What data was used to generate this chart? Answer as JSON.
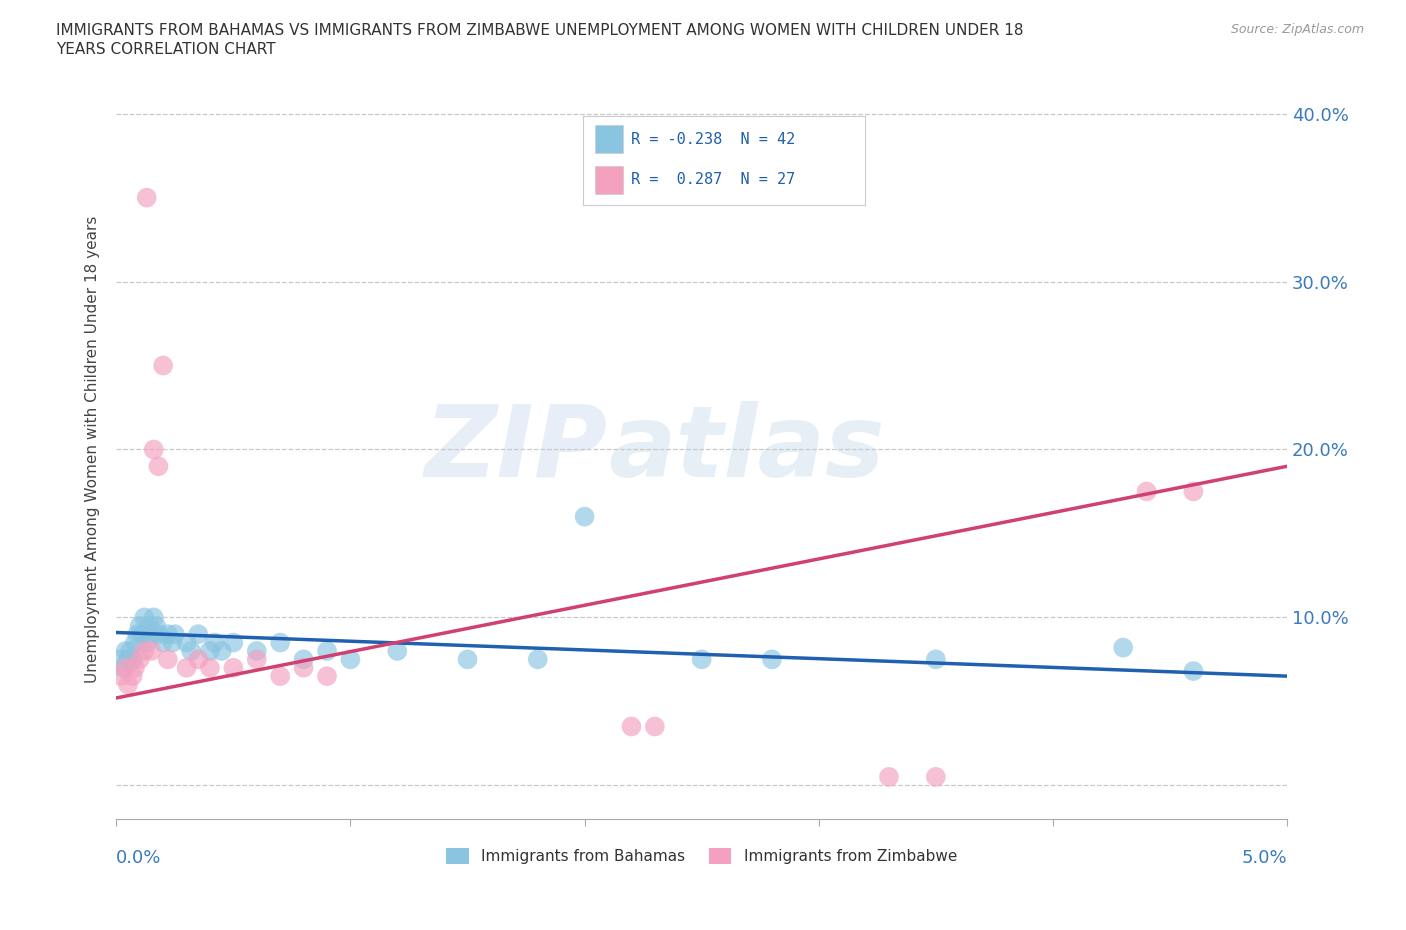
{
  "title": "IMMIGRANTS FROM BAHAMAS VS IMMIGRANTS FROM ZIMBABWE UNEMPLOYMENT AMONG WOMEN WITH CHILDREN UNDER 18\nYEARS CORRELATION CHART",
  "source": "Source: ZipAtlas.com",
  "ylabel": "Unemployment Among Women with Children Under 18 years",
  "xlim": [
    0.0,
    0.05
  ],
  "ylim": [
    -0.02,
    0.42
  ],
  "watermark_zip": "ZIP",
  "watermark_atlas": "atlas",
  "color_bahamas": "#89c4e1",
  "color_zimbabwe": "#f4a0bf",
  "color_bahamas_line": "#2060b0",
  "color_zimbabwe_line": "#d04070",
  "color_tick": "#3a7abf",
  "background_color": "#ffffff",
  "grid_color": "#c8c8c8",
  "bahamas_x": [
    0.0002,
    0.0003,
    0.0004,
    0.0005,
    0.0006,
    0.0007,
    0.0008,
    0.0009,
    0.001,
    0.0011,
    0.0012,
    0.0013,
    0.0014,
    0.0015,
    0.0016,
    0.0017,
    0.0018,
    0.002,
    0.0022,
    0.0024,
    0.0025,
    0.003,
    0.0032,
    0.0035,
    0.004,
    0.0042,
    0.0045,
    0.005,
    0.006,
    0.007,
    0.008,
    0.009,
    0.01,
    0.012,
    0.015,
    0.018,
    0.02,
    0.025,
    0.028,
    0.035,
    0.043,
    0.046
  ],
  "bahamas_y": [
    0.075,
    0.07,
    0.08,
    0.075,
    0.08,
    0.075,
    0.085,
    0.09,
    0.095,
    0.09,
    0.1,
    0.085,
    0.095,
    0.09,
    0.1,
    0.095,
    0.09,
    0.085,
    0.09,
    0.085,
    0.09,
    0.085,
    0.08,
    0.09,
    0.08,
    0.085,
    0.08,
    0.085,
    0.08,
    0.085,
    0.075,
    0.08,
    0.075,
    0.08,
    0.075,
    0.075,
    0.16,
    0.075,
    0.075,
    0.075,
    0.082,
    0.068
  ],
  "zimbabwe_x": [
    0.0002,
    0.0004,
    0.0005,
    0.0007,
    0.0008,
    0.001,
    0.0012,
    0.0013,
    0.0015,
    0.0016,
    0.0018,
    0.002,
    0.0022,
    0.003,
    0.0035,
    0.004,
    0.005,
    0.006,
    0.007,
    0.008,
    0.009,
    0.022,
    0.023,
    0.033,
    0.035,
    0.044,
    0.046
  ],
  "zimbabwe_y": [
    0.065,
    0.07,
    0.06,
    0.065,
    0.07,
    0.075,
    0.08,
    0.35,
    0.08,
    0.2,
    0.19,
    0.25,
    0.075,
    0.07,
    0.075,
    0.07,
    0.07,
    0.075,
    0.065,
    0.07,
    0.065,
    0.035,
    0.035,
    0.005,
    0.005,
    0.175,
    0.175
  ],
  "trendline_bahamas_x0": 0.0,
  "trendline_bahamas_y0": 0.091,
  "trendline_bahamas_x1": 0.05,
  "trendline_bahamas_y1": 0.065,
  "trendline_zimbabwe_x0": 0.0,
  "trendline_zimbabwe_y0": 0.052,
  "trendline_zimbabwe_x1": 0.05,
  "trendline_zimbabwe_y1": 0.19
}
